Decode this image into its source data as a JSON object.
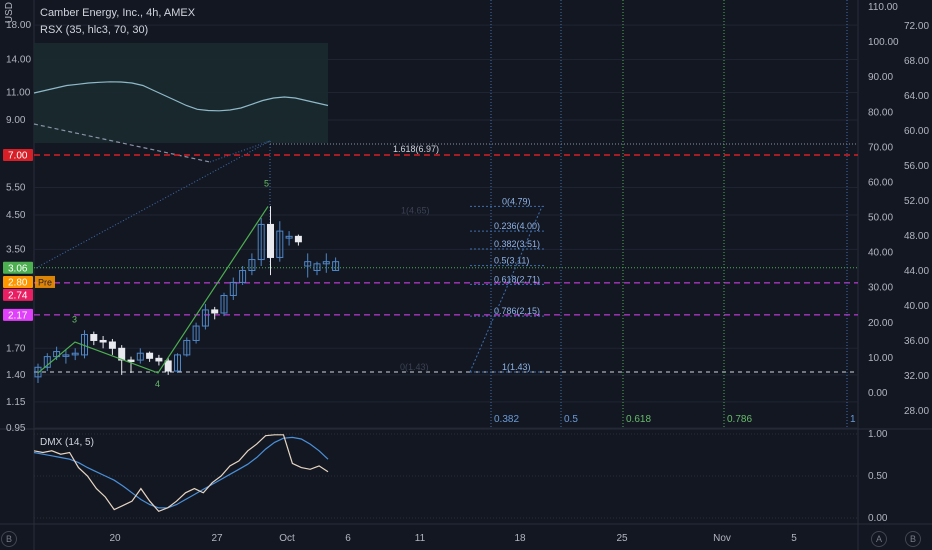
{
  "header": {
    "symbol_line": "Camber Energy, Inc., 4h, AMEX",
    "indicator_line": "RSX (35, hlc3, 70, 30)",
    "currency": "USD"
  },
  "dmx_label": "DMX (14, 5)",
  "badges": {
    "left_b": "B",
    "right_a": "A",
    "right_b": "B",
    "pre": "Pre"
  },
  "colors": {
    "background": "#131722",
    "up_candle": "#4f86c6",
    "down_candle": "#e8eaef",
    "red_level": "#d81e26",
    "green_level": "#4caf50",
    "pink_level": "#e040fb",
    "fib_blue": "#3f6fb0",
    "grid": "#1f2433"
  },
  "chart_data": {
    "type": "candlestick",
    "title": "Camber Energy, Inc., 4h, AMEX",
    "y_axis_left": {
      "scale": "log",
      "ticks": [
        "18.00",
        "14.00",
        "11.00",
        "9.00",
        "7.00",
        "5.50",
        "4.50",
        "3.50",
        "3.06",
        "2.80",
        "2.74",
        "2.17",
        "1.70",
        "1.40",
        "1.15",
        "0.95"
      ]
    },
    "y_axis_right": {
      "ticks": [
        "72.00",
        "68.00",
        "64.00",
        "60.00",
        "56.00",
        "52.00",
        "48.00",
        "44.00",
        "40.00",
        "36.00",
        "32.00",
        "28.00"
      ]
    },
    "rsx_axis": {
      "ticks": [
        "110.00",
        "100.00",
        "90.00",
        "80.00",
        "70.00",
        "60.00",
        "50.00",
        "40.00",
        "30.00",
        "20.00",
        "10.00",
        "0.00"
      ]
    },
    "x_axis": {
      "ticks": [
        "Z",
        "20",
        "27",
        "Oct",
        "6",
        "11",
        "18",
        "25",
        "Nov",
        "5"
      ]
    },
    "price_badges": [
      {
        "label": "7.00",
        "color": "#d81e26"
      },
      {
        "label": "3.06",
        "color": "#4caf50"
      },
      {
        "label": "2.80",
        "color": "#ff9800"
      },
      {
        "label": "2.74",
        "color": "#e91e63"
      },
      {
        "label": "2.17",
        "color": "#e040fb"
      }
    ],
    "candles": [
      {
        "o": 1.38,
        "h": 1.52,
        "l": 1.32,
        "c": 1.48
      },
      {
        "o": 1.48,
        "h": 1.64,
        "l": 1.44,
        "c": 1.6
      },
      {
        "o": 1.6,
        "h": 1.72,
        "l": 1.56,
        "c": 1.66
      },
      {
        "o": 1.62,
        "h": 1.68,
        "l": 1.52,
        "c": 1.62
      },
      {
        "o": 1.62,
        "h": 1.7,
        "l": 1.56,
        "c": 1.64
      },
      {
        "o": 1.62,
        "h": 1.94,
        "l": 1.58,
        "c": 1.88
      },
      {
        "o": 1.88,
        "h": 1.92,
        "l": 1.74,
        "c": 1.8
      },
      {
        "o": 1.8,
        "h": 1.86,
        "l": 1.7,
        "c": 1.78
      },
      {
        "o": 1.78,
        "h": 1.82,
        "l": 1.62,
        "c": 1.7
      },
      {
        "o": 1.7,
        "h": 1.74,
        "l": 1.4,
        "c": 1.56
      },
      {
        "o": 1.56,
        "h": 1.6,
        "l": 1.42,
        "c": 1.55
      },
      {
        "o": 1.56,
        "h": 1.7,
        "l": 1.52,
        "c": 1.64
      },
      {
        "o": 1.64,
        "h": 1.66,
        "l": 1.54,
        "c": 1.58
      },
      {
        "o": 1.58,
        "h": 1.62,
        "l": 1.5,
        "c": 1.55
      },
      {
        "o": 1.55,
        "h": 1.58,
        "l": 1.4,
        "c": 1.44
      },
      {
        "o": 1.44,
        "h": 1.64,
        "l": 1.42,
        "c": 1.62
      },
      {
        "o": 1.62,
        "h": 1.84,
        "l": 1.6,
        "c": 1.8
      },
      {
        "o": 1.8,
        "h": 2.05,
        "l": 1.76,
        "c": 2.0
      },
      {
        "o": 2.0,
        "h": 2.35,
        "l": 1.95,
        "c": 2.25
      },
      {
        "o": 2.25,
        "h": 2.3,
        "l": 2.1,
        "c": 2.2
      },
      {
        "o": 2.2,
        "h": 2.55,
        "l": 2.15,
        "c": 2.5
      },
      {
        "o": 2.5,
        "h": 2.85,
        "l": 2.42,
        "c": 2.75
      },
      {
        "o": 2.75,
        "h": 3.1,
        "l": 2.7,
        "c": 3.0
      },
      {
        "o": 3.0,
        "h": 3.4,
        "l": 2.9,
        "c": 3.25
      },
      {
        "o": 3.25,
        "h": 4.4,
        "l": 3.1,
        "c": 4.2
      },
      {
        "o": 4.2,
        "h": 4.8,
        "l": 2.9,
        "c": 3.3
      },
      {
        "o": 3.3,
        "h": 4.3,
        "l": 3.2,
        "c": 4.0
      },
      {
        "o": 3.8,
        "h": 4.0,
        "l": 3.6,
        "c": 3.85
      },
      {
        "o": 3.85,
        "h": 3.9,
        "l": 3.6,
        "c": 3.7
      },
      {
        "o": 3.1,
        "h": 3.4,
        "l": 2.85,
        "c": 3.2
      },
      {
        "o": 3.0,
        "h": 3.2,
        "l": 2.9,
        "c": 3.15
      },
      {
        "o": 3.15,
        "h": 3.4,
        "l": 2.95,
        "c": 3.2
      },
      {
        "o": 3.0,
        "h": 3.3,
        "l": 3.0,
        "c": 3.2
      }
    ],
    "fib_levels": [
      {
        "label": "0(4.79)",
        "value": 4.79
      },
      {
        "label": "0.236(4.00)",
        "value": 4.0
      },
      {
        "label": "0.382(3.51)",
        "value": 3.51
      },
      {
        "label": "0.5(3.11)",
        "value": 3.11
      },
      {
        "label": "0.618(2.71)",
        "value": 2.71
      },
      {
        "label": "0.786(2.15)",
        "value": 2.15
      },
      {
        "label": "1(1.43)",
        "value": 1.43
      }
    ],
    "fib_extension": {
      "label": "1.618(6.97)",
      "value": 6.97
    },
    "ghost_labels": [
      "1(4.65)",
      "0(1.43)"
    ],
    "wave_labels": [
      "3",
      "4",
      "5"
    ],
    "time_fib_labels": [
      "0.382",
      "0.5",
      "0.618",
      "0.786",
      "1"
    ],
    "rsx_series": [
      54,
      55,
      56,
      57,
      57.5,
      58,
      58.3,
      58.5,
      58.4,
      58,
      57,
      55,
      53,
      51,
      49,
      47.5,
      47,
      46.9,
      47.2,
      48,
      49.5,
      51,
      52,
      52.4,
      52,
      51,
      50,
      49
    ],
    "dmx": {
      "ticks": [
        "1.00",
        "0.50",
        "0.00"
      ],
      "blue_series": [
        0.78,
        0.76,
        0.74,
        0.72,
        0.7,
        0.66,
        0.6,
        0.55,
        0.5,
        0.45,
        0.38,
        0.3,
        0.22,
        0.16,
        0.12,
        0.12,
        0.16,
        0.22,
        0.28,
        0.34,
        0.4,
        0.46,
        0.52,
        0.58,
        0.64,
        0.72,
        0.82,
        0.9,
        0.95,
        0.96,
        0.94,
        0.88,
        0.8,
        0.7
      ],
      "white_series": [
        0.8,
        0.78,
        0.8,
        0.76,
        0.78,
        0.6,
        0.5,
        0.35,
        0.25,
        0.1,
        0.15,
        0.2,
        0.35,
        0.2,
        0.08,
        0.12,
        0.2,
        0.3,
        0.35,
        0.3,
        0.42,
        0.5,
        0.62,
        0.68,
        0.8,
        0.88,
        0.98,
        0.99,
        0.99,
        0.65,
        0.6,
        0.58,
        0.62,
        0.55
      ]
    }
  }
}
